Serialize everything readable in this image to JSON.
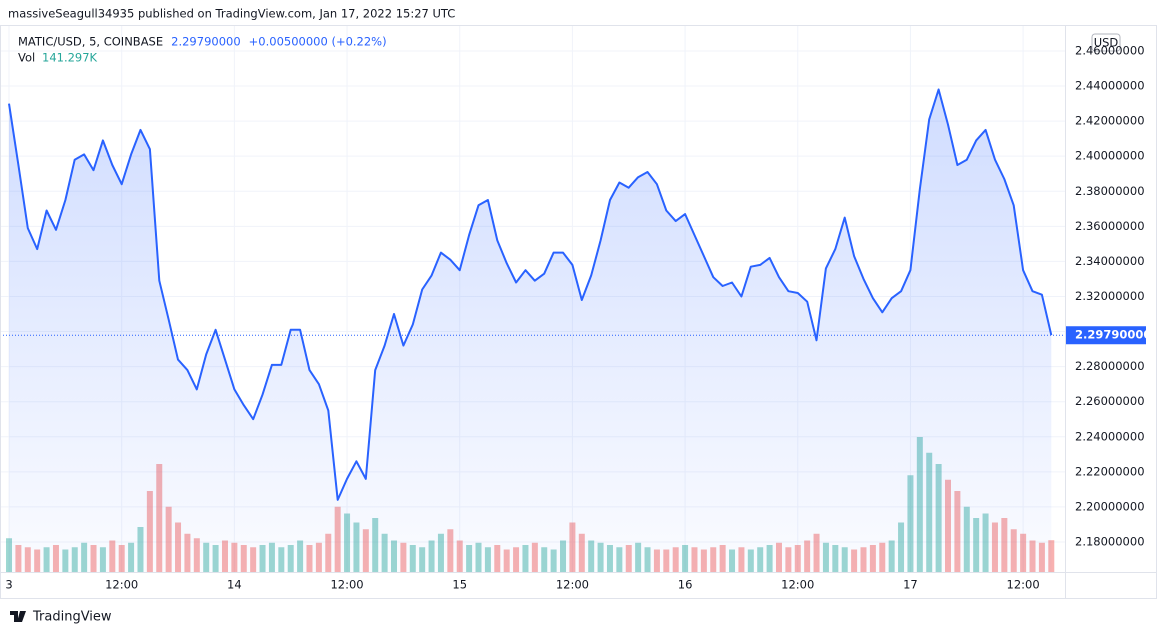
{
  "header": {
    "text": "massiveSeagull34935 published on TradingView.com, Jan 17, 2022 15:27 UTC"
  },
  "footer": {
    "brand": "TradingView"
  },
  "chart_data": {
    "type": "line",
    "symbol": "MATIC/USD, 5, COINBASE",
    "price": "2.29790000",
    "change": "+0.00500000 (+0.22%)",
    "currency": "USD",
    "color": "#2962ff",
    "x": [
      0,
      1,
      2,
      3,
      4,
      5,
      6,
      7,
      8,
      9,
      10,
      11,
      12,
      13,
      14,
      15,
      16,
      17,
      18,
      19,
      20,
      21,
      22,
      23,
      24,
      25,
      26,
      27,
      28,
      29,
      30,
      31,
      32,
      33,
      34,
      35,
      36,
      37,
      38,
      39,
      40,
      41,
      42,
      43,
      44,
      45,
      46,
      47,
      48,
      49,
      50,
      51,
      52,
      53,
      54,
      55,
      56,
      57,
      58,
      59,
      60,
      61,
      62,
      63,
      64,
      65,
      66,
      67,
      68,
      69,
      70,
      71,
      72,
      73,
      74,
      75,
      76,
      77,
      78,
      79,
      80,
      81,
      82,
      83,
      84,
      85,
      86,
      87,
      88,
      89,
      90,
      91,
      92,
      93,
      94,
      95,
      96,
      97,
      98,
      99,
      100,
      101,
      102,
      103,
      104,
      105,
      106,
      107,
      108,
      109,
      110,
      111
    ],
    "values": [
      2.43,
      2.395,
      2.359,
      2.347,
      2.369,
      2.358,
      2.375,
      2.398,
      2.401,
      2.392,
      2.409,
      2.395,
      2.384,
      2.401,
      2.415,
      2.404,
      2.329,
      2.307,
      2.284,
      2.278,
      2.267,
      2.287,
      2.301,
      2.284,
      2.267,
      2.258,
      2.25,
      2.264,
      2.281,
      2.281,
      2.301,
      2.301,
      2.278,
      2.27,
      2.255,
      2.204,
      2.216,
      2.226,
      2.216,
      2.278,
      2.292,
      2.31,
      2.292,
      2.304,
      2.324,
      2.332,
      2.345,
      2.341,
      2.335,
      2.355,
      2.372,
      2.375,
      2.352,
      2.339,
      2.328,
      2.335,
      2.329,
      2.333,
      2.345,
      2.345,
      2.338,
      2.318,
      2.332,
      2.352,
      2.375,
      2.385,
      2.382,
      2.388,
      2.391,
      2.384,
      2.369,
      2.363,
      2.367,
      2.355,
      2.343,
      2.331,
      2.326,
      2.328,
      2.32,
      2.337,
      2.338,
      2.342,
      2.331,
      2.323,
      2.322,
      2.317,
      2.295,
      2.336,
      2.347,
      2.365,
      2.343,
      2.33,
      2.319,
      2.311,
      2.319,
      2.323,
      2.335,
      2.381,
      2.421,
      2.438,
      2.418,
      2.395,
      2.398,
      2.409,
      2.415,
      2.398,
      2.387,
      2.372,
      2.335,
      2.323,
      2.321,
      2.298
    ],
    "xlim": [
      -0.96,
      112.46
    ],
    "xticks": [
      {
        "value": 0,
        "label": "3"
      },
      {
        "value": 12,
        "label": "12:00"
      },
      {
        "value": 24,
        "label": "14"
      },
      {
        "value": 36,
        "label": "12:00"
      },
      {
        "value": 48,
        "label": "15"
      },
      {
        "value": 60,
        "label": "12:00"
      },
      {
        "value": 72,
        "label": "16"
      },
      {
        "value": 84,
        "label": "12:00"
      },
      {
        "value": 96,
        "label": "17"
      },
      {
        "value": 108,
        "label": "12:00"
      }
    ],
    "ylim": [
      2.1629,
      2.4748
    ],
    "yticks": [
      {
        "value": 2.18,
        "label": "2.18000000"
      },
      {
        "value": 2.2,
        "label": "2.20000000"
      },
      {
        "value": 2.22,
        "label": "2.22000000"
      },
      {
        "value": 2.24,
        "label": "2.24000000"
      },
      {
        "value": 2.26,
        "label": "2.26000000"
      },
      {
        "value": 2.28,
        "label": "2.28000000"
      },
      {
        "value": 2.3,
        "label": "2.30000000"
      },
      {
        "value": 2.32,
        "label": "2.32000000"
      },
      {
        "value": 2.34,
        "label": "2.34000000"
      },
      {
        "value": 2.36,
        "label": "2.36000000"
      },
      {
        "value": 2.38,
        "label": "2.38000000"
      },
      {
        "value": 2.4,
        "label": "2.40000000"
      },
      {
        "value": 2.42,
        "label": "2.42000000"
      },
      {
        "value": 2.44,
        "label": "2.44000000"
      },
      {
        "value": 2.46,
        "label": "2.46000000"
      }
    ],
    "grid": true,
    "last_price": {
      "value": 2.2979,
      "label": "2.29790000"
    },
    "volume": {
      "name": "Vol",
      "last_label": "141.297K",
      "up_color": "#26a69a",
      "down_color": "#ef5350",
      "values": [
        150,
        120,
        110,
        100,
        110,
        120,
        100,
        110,
        130,
        120,
        110,
        140,
        120,
        130,
        200,
        360,
        480,
        290,
        220,
        170,
        150,
        130,
        120,
        140,
        130,
        120,
        110,
        120,
        130,
        110,
        120,
        140,
        120,
        130,
        170,
        290,
        260,
        220,
        190,
        240,
        170,
        140,
        130,
        120,
        110,
        140,
        170,
        190,
        140,
        120,
        130,
        110,
        120,
        100,
        110,
        120,
        130,
        110,
        100,
        140,
        220,
        170,
        140,
        130,
        120,
        110,
        120,
        130,
        110,
        100,
        100,
        110,
        120,
        110,
        100,
        110,
        120,
        100,
        110,
        100,
        110,
        120,
        130,
        110,
        120,
        140,
        170,
        130,
        120,
        110,
        100,
        110,
        120,
        130,
        140,
        220,
        430,
        600,
        530,
        480,
        410,
        360,
        290,
        240,
        260,
        220,
        240,
        190,
        170,
        140,
        130,
        141.297
      ]
    }
  }
}
